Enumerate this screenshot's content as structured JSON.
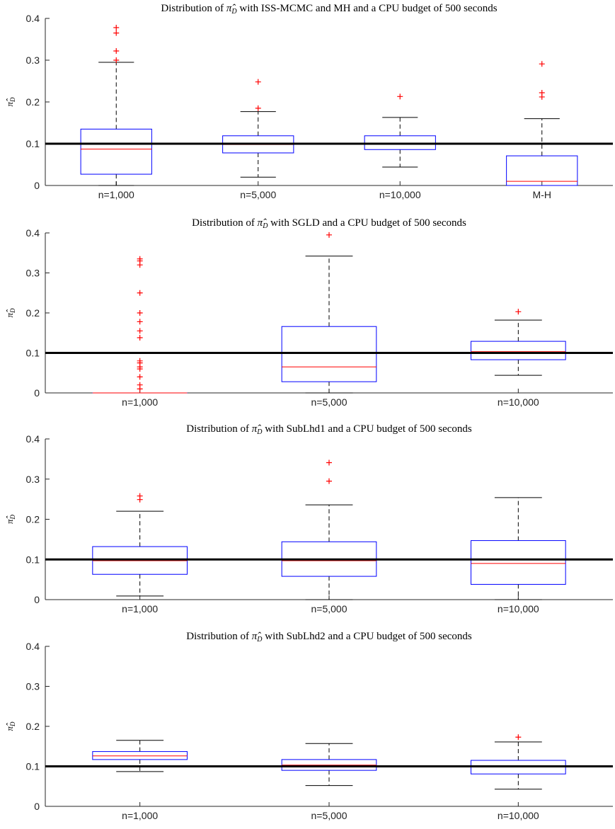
{
  "chart_data": [
    {
      "type": "box",
      "title": "Distribution of π̂_D with ISS-MCMC and MH and a CPU budget of 500 seconds",
      "ylabel": "π̂_D",
      "ylim": [
        0,
        0.4
      ],
      "yticks": [
        "0",
        "0.1",
        "0.2",
        "0.3",
        "0.4"
      ],
      "reference_line": 0.1,
      "categories": [
        "n=1,000",
        "n=5,000",
        "n=10,000",
        "M-H"
      ],
      "boxes": [
        {
          "q1": 0.027,
          "median": 0.087,
          "q3": 0.135,
          "whisker_low": 0.0,
          "whisker_high": 0.295,
          "outliers": [
            0.3,
            0.322,
            0.365,
            0.378
          ]
        },
        {
          "q1": 0.078,
          "median": 0.098,
          "q3": 0.119,
          "whisker_low": 0.02,
          "whisker_high": 0.177,
          "outliers": [
            0.185,
            0.248
          ]
        },
        {
          "q1": 0.086,
          "median": 0.101,
          "q3": 0.119,
          "whisker_low": 0.044,
          "whisker_high": 0.163,
          "outliers": [
            0.213
          ]
        },
        {
          "q1": 0.0,
          "median": 0.01,
          "q3": 0.071,
          "whisker_low": 0.0,
          "whisker_high": 0.16,
          "outliers": [
            0.212,
            0.222,
            0.291
          ]
        }
      ]
    },
    {
      "type": "box",
      "title": "Distribution of π̂_D with SGLD and a CPU budget of 500 seconds",
      "ylabel": "π̂_D",
      "ylim": [
        0,
        0.4
      ],
      "yticks": [
        "0",
        "0.1",
        "0.2",
        "0.3",
        "0.4"
      ],
      "reference_line": 0.1,
      "categories": [
        "n=1,000",
        "n=5,000",
        "n=10,000"
      ],
      "boxes": [
        {
          "q1": 0.0,
          "median": 0.0,
          "q3": 0.0,
          "whisker_low": 0.0,
          "whisker_high": 0.0,
          "outliers": [
            0.01,
            0.02,
            0.04,
            0.06,
            0.065,
            0.075,
            0.08,
            0.138,
            0.155,
            0.178,
            0.2,
            0.25,
            0.32,
            0.33,
            0.335
          ]
        },
        {
          "q1": 0.028,
          "median": 0.065,
          "q3": 0.166,
          "whisker_low": 0.0,
          "whisker_high": 0.342,
          "outliers": [
            0.395
          ]
        },
        {
          "q1": 0.083,
          "median": 0.103,
          "q3": 0.129,
          "whisker_low": 0.044,
          "whisker_high": 0.182,
          "outliers": [
            0.203
          ]
        }
      ]
    },
    {
      "type": "box",
      "title": "Distribution of π̂_D with SubLhd1 and a CPU budget of 500 seconds",
      "ylabel": "π̂_D",
      "ylim": [
        0,
        0.4
      ],
      "yticks": [
        "0",
        "0.1",
        "0.2",
        "0.3",
        "0.4"
      ],
      "reference_line": 0.1,
      "categories": [
        "n=1,000",
        "n=5,000",
        "n=10,000"
      ],
      "boxes": [
        {
          "q1": 0.063,
          "median": 0.097,
          "q3": 0.132,
          "whisker_low": 0.009,
          "whisker_high": 0.22,
          "outliers": [
            0.249,
            0.258
          ]
        },
        {
          "q1": 0.058,
          "median": 0.097,
          "q3": 0.144,
          "whisker_low": 0.0,
          "whisker_high": 0.236,
          "outliers": [
            0.295,
            0.341
          ]
        },
        {
          "q1": 0.038,
          "median": 0.09,
          "q3": 0.147,
          "whisker_low": 0.0,
          "whisker_high": 0.254,
          "outliers": []
        }
      ]
    },
    {
      "type": "box",
      "title": "Distribution of π̂_D with SubLhd2 and a CPU budget of 500 seconds",
      "ylabel": "π̂_D",
      "ylim": [
        0,
        0.4
      ],
      "yticks": [
        "0",
        "0.1",
        "0.2",
        "0.3",
        "0.4"
      ],
      "reference_line": 0.1,
      "categories": [
        "n=1,000",
        "n=5,000",
        "n=10,000"
      ],
      "boxes": [
        {
          "q1": 0.117,
          "median": 0.126,
          "q3": 0.137,
          "whisker_low": 0.087,
          "whisker_high": 0.165,
          "outliers": []
        },
        {
          "q1": 0.09,
          "median": 0.103,
          "q3": 0.117,
          "whisker_low": 0.052,
          "whisker_high": 0.157,
          "outliers": []
        },
        {
          "q1": 0.081,
          "median": 0.1,
          "q3": 0.115,
          "whisker_low": 0.043,
          "whisker_high": 0.161,
          "outliers": [
            0.173
          ]
        }
      ]
    }
  ]
}
